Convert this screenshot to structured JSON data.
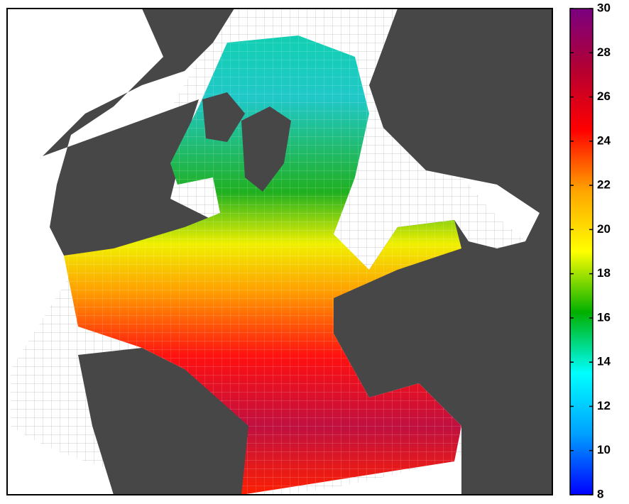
{
  "colorbar": {
    "range": [
      8,
      30
    ],
    "ticks": [
      8,
      10,
      12,
      14,
      16,
      18,
      20,
      22,
      24,
      26,
      28,
      30
    ],
    "colors": [
      "#0000ff",
      "#00a0ff",
      "#00ffff",
      "#00b000",
      "#ffff00",
      "#ffa500",
      "#ff0000",
      "#b40032",
      "#7a0080"
    ]
  }
}
